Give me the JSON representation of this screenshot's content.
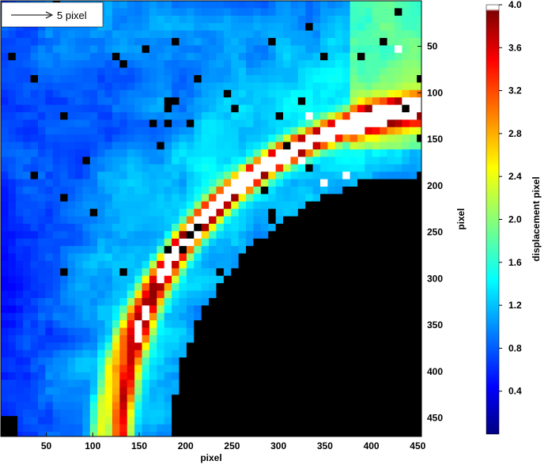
{
  "chart_data": {
    "type": "heatmap",
    "title": "",
    "xlabel": "pixel",
    "ylabel": "pixel",
    "xlim": [
      1,
      454
    ],
    "ylim": [
      1,
      470
    ],
    "y_inverted": true,
    "x_ticks": [
      50,
      100,
      150,
      200,
      250,
      300,
      350,
      400,
      450
    ],
    "y_ticks": [
      50,
      100,
      150,
      200,
      250,
      300,
      350,
      400,
      450
    ],
    "colorbar": {
      "label": "displacement pixel",
      "range": [
        0,
        4.0
      ],
      "ticks": [
        0.4,
        0.8,
        1.2,
        1.6,
        2.0,
        2.4,
        2.8,
        3.2,
        3.6,
        4.0
      ],
      "tick_labels": [
        "0.4",
        "0.8",
        "1.2",
        "1.6",
        "2.0",
        "2.4",
        "2.8",
        "3.2",
        "3.6",
        "4.0"
      ],
      "colormap": "jet",
      "saturated_color": "#ffffff",
      "masked_color": "#000000"
    },
    "reference_vector": {
      "label": "5 pixel",
      "magnitude": 5
    },
    "field_description": {
      "masked_region": "solid black region occupying lower-right (x > ~185, y > ~200), bounded by curved edge",
      "high_band": "arc of elevated displacement (2.0–4.0) running from x≈130,y≈470 up to x≈450,y≈80 along the masked boundary",
      "background_levels": {
        "upper_left": 0.7,
        "lower_left": 0.3,
        "near_band": 1.2
      }
    }
  }
}
